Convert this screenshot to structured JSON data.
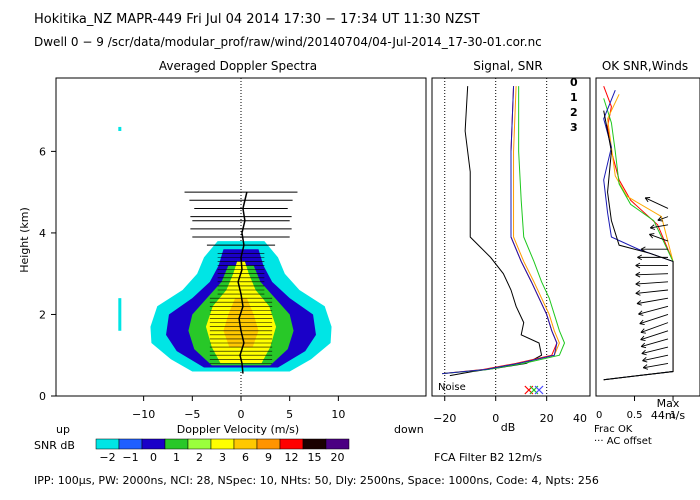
{
  "header": {
    "line1": "Hokitika_NZ   MAPR-449   Fri Jul 04 2014 17:30 − 17:34 UT 11:30 NZST",
    "line2": "Dwell   0 −   9   /scr/data/modular_prof/raw/wind/20140704/04-Jul-2014_17-30-01.cor.nc"
  },
  "footer": {
    "params": "IPP: 100μs,  PW: 2000ns,  NCI:  28,  NSpec: 10, NHts: 50,  Dly: 2500ns,  Space: 1000ns,  Code: 4,  Npts: 256",
    "fca": "FCA Filter B2 12m/s"
  },
  "chart_data": [
    {
      "type": "heatmap",
      "title": "Averaged Doppler Spectra",
      "xlabel": "Doppler Velocity (m/s)",
      "ylabel": "Height (km)",
      "xlim": [
        -19,
        19
      ],
      "ylim": [
        0,
        7.8
      ],
      "xticks": [
        "−10",
        "−5",
        "0",
        "5",
        "10"
      ],
      "yticks": [
        "0",
        "2",
        "4",
        "6"
      ],
      "corner_left": "up",
      "corner_right": "down",
      "colorbar": {
        "label": "SNR dB",
        "levels": [
          "−2",
          "−1",
          "0",
          "1",
          "2",
          "3",
          "6",
          "9",
          "12",
          "15",
          "20"
        ],
        "colors": [
          "#00e5e5",
          "#1f5fff",
          "#1a00c8",
          "#28c828",
          "#9aff3c",
          "#ffff00",
          "#ffc800",
          "#ff9400",
          "#ff0000",
          "#1a0000",
          "#4b0082"
        ]
      },
      "contours": [
        {
          "level": "−2",
          "half_width_ms": [
            [
              0.6,
              5.0
            ],
            [
              0.9,
              7.2
            ],
            [
              1.3,
              9.2
            ],
            [
              1.7,
              9.3
            ],
            [
              2.2,
              8.6
            ],
            [
              2.6,
              6.0
            ],
            [
              3.0,
              4.5
            ],
            [
              3.4,
              3.8
            ],
            [
              3.8,
              2.4
            ]
          ]
        },
        {
          "level": "0",
          "half_width_ms": [
            [
              0.7,
              3.8
            ],
            [
              1.1,
              6.6
            ],
            [
              1.5,
              7.7
            ],
            [
              2.0,
              7.4
            ],
            [
              2.4,
              5.0
            ],
            [
              2.8,
              3.2
            ],
            [
              3.2,
              2.3
            ],
            [
              3.6,
              1.8
            ]
          ]
        },
        {
          "level": "1",
          "half_width_ms": [
            [
              0.75,
              3.0
            ],
            [
              1.15,
              4.8
            ],
            [
              1.6,
              5.4
            ],
            [
              2.0,
              5.0
            ],
            [
              2.4,
              3.5
            ],
            [
              2.8,
              2.0
            ],
            [
              3.2,
              1.3
            ]
          ]
        },
        {
          "level": "3",
          "half_width_ms": [
            [
              0.8,
              2.1
            ],
            [
              1.2,
              3.0
            ],
            [
              1.7,
              3.6
            ],
            [
              2.2,
              2.9
            ],
            [
              2.6,
              1.5
            ],
            [
              3.0,
              0.8
            ],
            [
              3.3,
              0.4
            ]
          ]
        },
        {
          "level": "6",
          "half_width_ms": [
            [
              1.2,
              1.2
            ],
            [
              1.6,
              1.8
            ],
            [
              2.0,
              1.3
            ],
            [
              2.4,
              0.6
            ]
          ]
        }
      ],
      "noise_bars": [
        {
          "height_km": 5.0,
          "half_width_ms": 5.8
        },
        {
          "height_km": 4.8,
          "half_width_ms": 5.3
        },
        {
          "height_km": 4.6,
          "half_width_ms": 4.8
        },
        {
          "height_km": 4.4,
          "half_width_ms": 5.2
        },
        {
          "height_km": 4.3,
          "half_width_ms": 5.0
        },
        {
          "height_km": 4.1,
          "half_width_ms": 5.2
        },
        {
          "height_km": 3.9,
          "half_width_ms": 5.0
        },
        {
          "height_km": 3.7,
          "half_width_ms": 3.5
        }
      ],
      "mean_velocity_profile": [
        [
          0.55,
          0.2
        ],
        [
          0.8,
          0.1
        ],
        [
          1.0,
          -0.1
        ],
        [
          1.3,
          0.3
        ],
        [
          1.6,
          0.0
        ],
        [
          1.9,
          -0.2
        ],
        [
          2.2,
          0.2
        ],
        [
          2.5,
          0.0
        ],
        [
          2.8,
          -0.3
        ],
        [
          3.1,
          0.1
        ],
        [
          3.4,
          0.0
        ],
        [
          3.7,
          0.3
        ],
        [
          4.0,
          0.1
        ],
        [
          4.3,
          0.4
        ],
        [
          4.6,
          0.2
        ],
        [
          5.0,
          0.6
        ]
      ]
    },
    {
      "type": "line",
      "title": "Signal, SNR",
      "xlabel": "dB",
      "xlim": [
        -25,
        37
      ],
      "ylim": [
        0,
        7.8
      ],
      "xticks": [
        "−20",
        "0",
        "20"
      ],
      "xtick_values": [
        -20,
        0,
        20
      ],
      "extra_xtick": "40",
      "noise_label": "Noise",
      "series": [
        {
          "name": "signal",
          "color": "#000000",
          "points": [
            [
              -18,
              0.5
            ],
            [
              -9,
              0.6
            ],
            [
              2,
              0.7
            ],
            [
              12,
              0.8
            ],
            [
              18,
              1.0
            ],
            [
              17,
              1.3
            ],
            [
              10,
              1.5
            ],
            [
              11,
              1.8
            ],
            [
              8,
              2.2
            ],
            [
              6,
              2.6
            ],
            [
              3,
              3.0
            ],
            [
              -2,
              3.4
            ],
            [
              -10,
              3.9
            ],
            [
              -10,
              4.5
            ],
            [
              -10,
              5.5
            ],
            [
              -12,
              6.5
            ],
            [
              -11,
              7.6
            ]
          ]
        },
        {
          "name": "snr-0",
          "color": "#ff0000",
          "points": [
            [
              -21,
              0.55
            ],
            [
              -5,
              0.65
            ],
            [
              8,
              0.8
            ],
            [
              22,
              1.0
            ],
            [
              24,
              1.3
            ],
            [
              22,
              1.6
            ],
            [
              20,
              2.0
            ],
            [
              17,
              2.4
            ],
            [
              14,
              2.8
            ],
            [
              10,
              3.3
            ],
            [
              6,
              3.9
            ],
            [
              6,
              4.8
            ],
            [
              6,
              6.0
            ],
            [
              7,
              7.6
            ]
          ]
        },
        {
          "name": "snr-1",
          "color": "#ff9b00",
          "points": [
            [
              -21,
              0.55
            ],
            [
              -4,
              0.65
            ],
            [
              9,
              0.8
            ],
            [
              23,
              1.0
            ],
            [
              25,
              1.3
            ],
            [
              23,
              1.6
            ],
            [
              21,
              2.0
            ],
            [
              18,
              2.4
            ],
            [
              15,
              2.8
            ],
            [
              11,
              3.3
            ],
            [
              7,
              3.9
            ],
            [
              7,
              4.8
            ],
            [
              7,
              6.0
            ],
            [
              8,
              7.6
            ]
          ]
        },
        {
          "name": "snr-2",
          "color": "#1ec81e",
          "points": [
            [
              -21,
              0.55
            ],
            [
              -3,
              0.65
            ],
            [
              11,
              0.8
            ],
            [
              25,
              1.0
            ],
            [
              27,
              1.3
            ],
            [
              25,
              1.6
            ],
            [
              23,
              2.0
            ],
            [
              21,
              2.4
            ],
            [
              18,
              2.8
            ],
            [
              15,
              3.3
            ],
            [
              11,
              3.9
            ],
            [
              10,
              4.8
            ],
            [
              9,
              6.0
            ],
            [
              9,
              7.6
            ]
          ]
        },
        {
          "name": "snr-3",
          "color": "#1a1ab4",
          "points": [
            [
              -21,
              0.55
            ],
            [
              -4,
              0.65
            ],
            [
              9,
              0.8
            ],
            [
              23,
              1.0
            ],
            [
              24,
              1.3
            ],
            [
              22,
              1.6
            ],
            [
              20,
              2.0
            ],
            [
              17,
              2.4
            ],
            [
              14,
              2.8
            ],
            [
              10,
              3.3
            ],
            [
              6,
              3.9
            ],
            [
              6,
              4.8
            ],
            [
              6,
              6.0
            ],
            [
              7,
              7.6
            ]
          ]
        }
      ],
      "noise_markers": [
        {
          "x": 13,
          "color": "#ff0000"
        },
        {
          "x": 15,
          "color": "#1ec81e"
        },
        {
          "x": 17,
          "color": "#4a4aff"
        }
      ]
    },
    {
      "type": "line",
      "title": "OK SNR,Winds",
      "xlim": [
        0,
        1.35
      ],
      "ylim": [
        0,
        7.8
      ],
      "xticks": [
        "0.5",
        "1"
      ],
      "xtick_values": [
        0.5,
        1
      ],
      "legend": [
        {
          "name": "0",
          "color": "#ff0000"
        },
        {
          "name": "1",
          "color": "#ffaa00"
        },
        {
          "name": "2",
          "color": "#1ec81e"
        },
        {
          "name": "3",
          "color": "#1a1ab4"
        }
      ],
      "notes": {
        "frac_ok": "Frac OK",
        "ac_offset": "··· AC offset",
        "max_label": "Max",
        "max_value": "44m/s"
      },
      "series": [
        {
          "name": "0",
          "color": "#ff0000",
          "points": [
            [
              0.1,
              0.4
            ],
            [
              1.0,
              0.6
            ],
            [
              1.0,
              1.0
            ],
            [
              1.0,
              3.3
            ],
            [
              0.8,
              4.2
            ],
            [
              0.45,
              4.8
            ],
            [
              0.3,
              5.3
            ],
            [
              0.2,
              6.0
            ],
            [
              0.15,
              6.6
            ],
            [
              0.2,
              7.1
            ],
            [
              0.1,
              7.6
            ]
          ]
        },
        {
          "name": "1",
          "color": "#ffaa00",
          "points": [
            [
              0.1,
              0.4
            ],
            [
              1.0,
              0.6
            ],
            [
              1.0,
              1.0
            ],
            [
              1.0,
              3.3
            ],
            [
              0.85,
              4.4
            ],
            [
              0.4,
              4.9
            ],
            [
              0.25,
              5.4
            ],
            [
              0.2,
              6.1
            ],
            [
              0.15,
              6.8
            ],
            [
              0.3,
              7.4
            ]
          ]
        },
        {
          "name": "2",
          "color": "#1ec81e",
          "points": [
            [
              0.1,
              0.4
            ],
            [
              1.0,
              0.6
            ],
            [
              1.0,
              1.0
            ],
            [
              1.0,
              3.3
            ],
            [
              0.75,
              4.3
            ],
            [
              0.45,
              4.7
            ],
            [
              0.3,
              5.2
            ],
            [
              0.25,
              6.0
            ],
            [
              0.2,
              6.7
            ],
            [
              0.1,
              7.3
            ]
          ]
        },
        {
          "name": "3",
          "color": "#1a1ab4",
          "points": [
            [
              0.1,
              0.4
            ],
            [
              1.0,
              0.6
            ],
            [
              1.0,
              1.0
            ],
            [
              1.0,
              3.3
            ],
            [
              0.55,
              3.6
            ],
            [
              0.2,
              3.9
            ],
            [
              0.15,
              4.5
            ],
            [
              0.1,
              5.3
            ],
            [
              0.2,
              6.1
            ],
            [
              0.1,
              6.8
            ],
            [
              0.25,
              7.5
            ]
          ]
        },
        {
          "name": "ok",
          "color": "#000000",
          "points": [
            [
              0.1,
              0.4
            ],
            [
              1.0,
              0.6
            ],
            [
              1.0,
              3.3
            ],
            [
              0.7,
              3.5
            ],
            [
              0.3,
              3.7
            ],
            [
              0.2,
              4.3
            ],
            [
              0.15,
              5.0
            ],
            [
              0.2,
              6.0
            ],
            [
              0.1,
              7.0
            ]
          ]
        }
      ],
      "wind_barbs": [
        {
          "height_km": 4.6,
          "angle_deg": 155,
          "length_ms": 28
        },
        {
          "height_km": 4.4,
          "angle_deg": 200,
          "length_ms": 12
        },
        {
          "height_km": 4.2,
          "angle_deg": 190,
          "length_ms": 20
        },
        {
          "height_km": 3.8,
          "angle_deg": 160,
          "length_ms": 22
        },
        {
          "height_km": 3.6,
          "angle_deg": 180,
          "length_ms": 30
        },
        {
          "height_km": 3.4,
          "angle_deg": 180,
          "length_ms": 34
        },
        {
          "height_km": 3.2,
          "angle_deg": 180,
          "length_ms": 36
        },
        {
          "height_km": 3.0,
          "angle_deg": 182,
          "length_ms": 36
        },
        {
          "height_km": 2.8,
          "angle_deg": 184,
          "length_ms": 36
        },
        {
          "height_km": 2.6,
          "angle_deg": 186,
          "length_ms": 36
        },
        {
          "height_km": 2.4,
          "angle_deg": 190,
          "length_ms": 35
        },
        {
          "height_km": 2.2,
          "angle_deg": 195,
          "length_ms": 34
        },
        {
          "height_km": 2.0,
          "angle_deg": 198,
          "length_ms": 33
        },
        {
          "height_km": 1.8,
          "angle_deg": 200,
          "length_ms": 32
        },
        {
          "height_km": 1.6,
          "angle_deg": 198,
          "length_ms": 32
        },
        {
          "height_km": 1.4,
          "angle_deg": 196,
          "length_ms": 31
        },
        {
          "height_km": 1.2,
          "angle_deg": 194,
          "length_ms": 30
        },
        {
          "height_km": 1.0,
          "angle_deg": 192,
          "length_ms": 29
        },
        {
          "height_km": 0.8,
          "angle_deg": 190,
          "length_ms": 28
        }
      ]
    }
  ]
}
